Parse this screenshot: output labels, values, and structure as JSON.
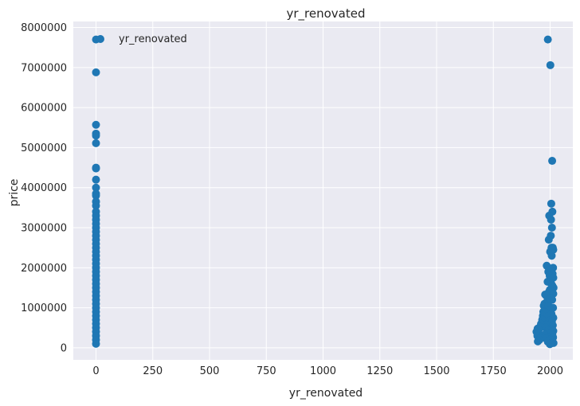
{
  "chart_data": {
    "type": "scatter",
    "title": "yr_renovated",
    "xlabel": "yr_renovated",
    "ylabel": "price",
    "xlim": [
      -100,
      2100
    ],
    "ylim": [
      -300000,
      8150000
    ],
    "xticks": [
      0,
      250,
      500,
      750,
      1000,
      1250,
      1500,
      1750,
      2000
    ],
    "yticks": [
      0,
      1000000,
      2000000,
      3000000,
      4000000,
      5000000,
      6000000,
      7000000,
      8000000
    ],
    "grid": true,
    "legend": {
      "position": "top-left",
      "entries": [
        "yr_renovated"
      ]
    },
    "colors": {
      "background": "#eaeaf2",
      "grid": "#ffffff",
      "marker": "#1f77b4",
      "text": "#262626"
    },
    "series": [
      {
        "name": "yr_renovated",
        "color": "#1f77b4",
        "points": [
          [
            0,
            7700000
          ],
          [
            0,
            6880000
          ],
          [
            0,
            5570000
          ],
          [
            0,
            5350000
          ],
          [
            0,
            5300000
          ],
          [
            0,
            5110000
          ],
          [
            0,
            4500000
          ],
          [
            0,
            4480000
          ],
          [
            0,
            4200000
          ],
          [
            0,
            4000000
          ],
          [
            0,
            3850000
          ],
          [
            0,
            3800000
          ],
          [
            0,
            3650000
          ],
          [
            0,
            3550000
          ],
          [
            0,
            3400000
          ],
          [
            0,
            3300000
          ],
          [
            0,
            3200000
          ],
          [
            0,
            3100000
          ],
          [
            0,
            3000000
          ],
          [
            0,
            2900000
          ],
          [
            0,
            2800000
          ],
          [
            0,
            2700000
          ],
          [
            0,
            2600000
          ],
          [
            0,
            2500000
          ],
          [
            0,
            2400000
          ],
          [
            0,
            2300000
          ],
          [
            0,
            2200000
          ],
          [
            0,
            2100000
          ],
          [
            0,
            2000000
          ],
          [
            0,
            1900000
          ],
          [
            0,
            1800000
          ],
          [
            0,
            1700000
          ],
          [
            0,
            1600000
          ],
          [
            0,
            1500000
          ],
          [
            0,
            1400000
          ],
          [
            0,
            1300000
          ],
          [
            0,
            1200000
          ],
          [
            0,
            1100000
          ],
          [
            0,
            1000000
          ],
          [
            0,
            900000
          ],
          [
            0,
            800000
          ],
          [
            0,
            700000
          ],
          [
            0,
            600000
          ],
          [
            0,
            500000
          ],
          [
            0,
            400000
          ],
          [
            0,
            300000
          ],
          [
            0,
            200000
          ],
          [
            0,
            100000
          ],
          [
            1990,
            7700000
          ],
          [
            2001,
            7060000
          ],
          [
            2009,
            4670000
          ],
          [
            2005,
            3600000
          ],
          [
            2010,
            3400000
          ],
          [
            1996,
            3300000
          ],
          [
            2004,
            3200000
          ],
          [
            2008,
            3000000
          ],
          [
            2003,
            2800000
          ],
          [
            1994,
            2700000
          ],
          [
            2012,
            2500000
          ],
          [
            2006,
            2500000
          ],
          [
            2000,
            2400000
          ],
          [
            2014,
            2450000
          ],
          [
            2007,
            2300000
          ],
          [
            1985,
            2050000
          ],
          [
            2013,
            2000000
          ],
          [
            1992,
            1900000
          ],
          [
            2002,
            1950000
          ],
          [
            2011,
            1850000
          ],
          [
            1998,
            1800000
          ],
          [
            2014,
            1750000
          ],
          [
            1989,
            1650000
          ],
          [
            2005,
            1600000
          ],
          [
            2010,
            1550000
          ],
          [
            2015,
            1500000
          ],
          [
            1999,
            1450000
          ],
          [
            1995,
            1400000
          ],
          [
            2014,
            1350000
          ],
          [
            1978,
            1330000
          ],
          [
            1983,
            1300000
          ],
          [
            2003,
            1250000
          ],
          [
            2009,
            1200000
          ],
          [
            1986,
            1150000
          ],
          [
            1975,
            1100000
          ],
          [
            1972,
            1050000
          ],
          [
            1993,
            1050000
          ],
          [
            2013,
            1000000
          ],
          [
            2001,
            950000
          ],
          [
            1970,
            900000
          ],
          [
            1980,
            880000
          ],
          [
            2006,
            850000
          ],
          [
            1968,
            800000
          ],
          [
            1988,
            780000
          ],
          [
            2014,
            750000
          ],
          [
            1965,
            700000
          ],
          [
            1997,
            680000
          ],
          [
            2008,
            650000
          ],
          [
            1960,
            600000
          ],
          [
            1984,
            580000
          ],
          [
            2012,
            560000
          ],
          [
            1955,
            520000
          ],
          [
            1979,
            500000
          ],
          [
            1945,
            480000
          ],
          [
            2004,
            470000
          ],
          [
            1950,
            450000
          ],
          [
            1991,
            430000
          ],
          [
            2014,
            420000
          ],
          [
            1940,
            400000
          ],
          [
            1987,
            380000
          ],
          [
            2000,
            370000
          ],
          [
            1948,
            350000
          ],
          [
            1976,
            330000
          ],
          [
            2010,
            320000
          ],
          [
            1944,
            300000
          ],
          [
            1962,
            280000
          ],
          [
            1994,
            270000
          ],
          [
            2013,
            260000
          ],
          [
            1958,
            240000
          ],
          [
            1982,
            230000
          ],
          [
            2005,
            220000
          ],
          [
            1953,
            200000
          ],
          [
            2007,
            190000
          ],
          [
            1946,
            160000
          ],
          [
            1990,
            150000
          ],
          [
            2011,
            140000
          ],
          [
            2015,
            120000
          ],
          [
            2002,
            110000
          ],
          [
            1999,
            90000
          ]
        ]
      }
    ]
  }
}
